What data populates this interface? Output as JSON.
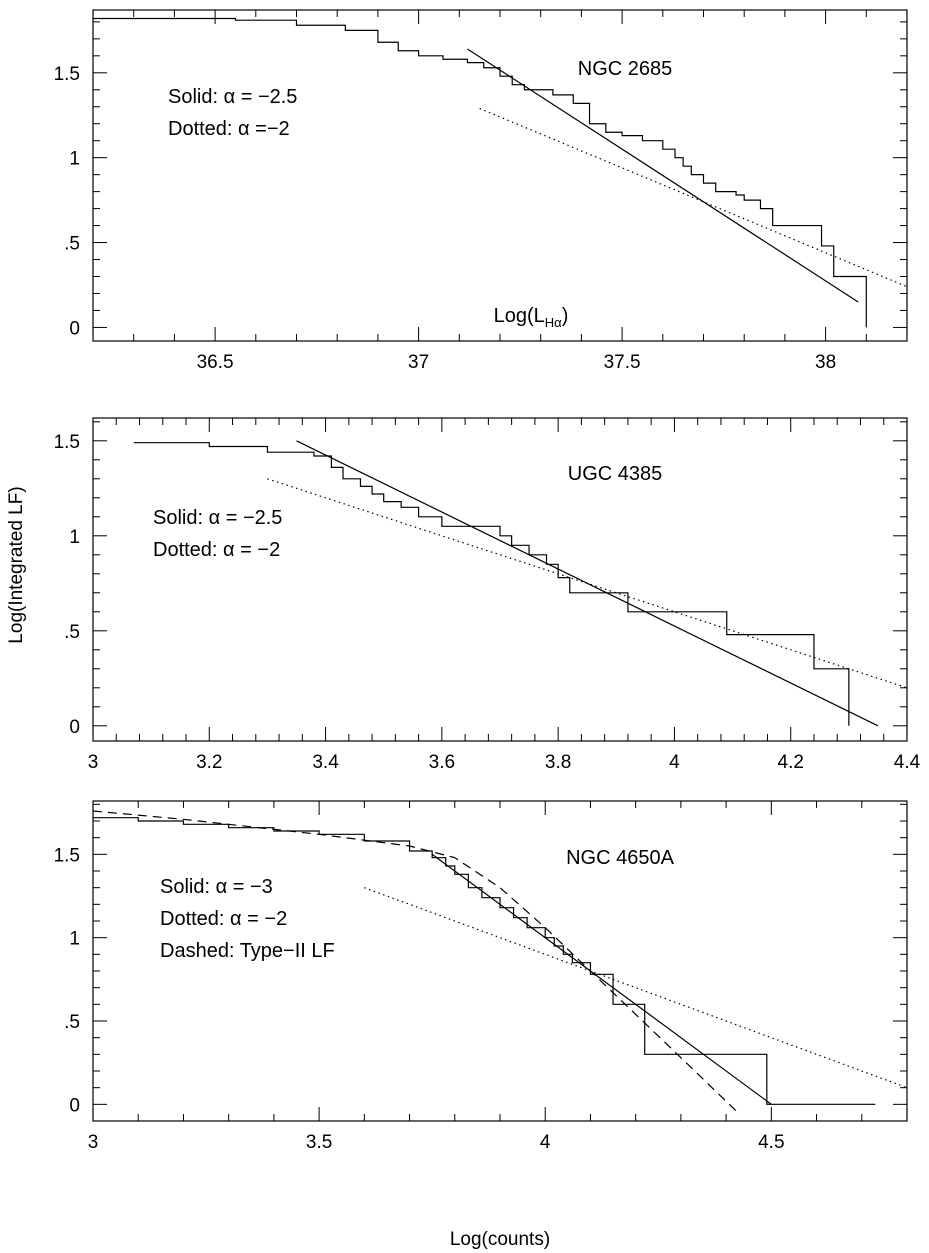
{
  "figure": {
    "ylabel": "Log(Integrated LF)",
    "xlabel_bottom": "Log(counts)"
  },
  "chart_data": [
    {
      "type": "line",
      "title": "NGC 2685",
      "xlabel_inside": "Log(L_Hα)",
      "xlim": [
        36.2,
        38.2
      ],
      "ylim": [
        -0.08,
        1.87
      ],
      "xticks": [
        36.5,
        37,
        37.5,
        38
      ],
      "xtick_labels": [
        "36.5",
        "37",
        "37.5",
        "38"
      ],
      "yticks": [
        0,
        0.5,
        1,
        1.5
      ],
      "ytick_labels": [
        "0",
        ".5",
        "1",
        "1.5"
      ],
      "legend": [
        {
          "style": "solid",
          "label": "Solid: α = −2.5"
        },
        {
          "style": "dotted",
          "label": "Dotted: α =−2"
        }
      ],
      "series": [
        {
          "kind": "step",
          "x": [
            36.2,
            36.55,
            36.7,
            36.82,
            36.9,
            36.95,
            37.0,
            37.06,
            37.12,
            37.16,
            37.2,
            37.23,
            37.26,
            37.33,
            37.38,
            37.42,
            37.46,
            37.5,
            37.55,
            37.6,
            37.63,
            37.65,
            37.67,
            37.7,
            37.73,
            37.78,
            37.8,
            37.84,
            37.87,
            37.95,
            37.99,
            38.02,
            38.04,
            38.1
          ],
          "y": [
            1.82,
            1.81,
            1.78,
            1.75,
            1.68,
            1.63,
            1.6,
            1.58,
            1.56,
            1.53,
            1.48,
            1.43,
            1.4,
            1.37,
            1.32,
            1.2,
            1.15,
            1.13,
            1.1,
            1.05,
            1.0,
            0.95,
            0.9,
            0.85,
            0.8,
            0.78,
            0.75,
            0.7,
            0.6,
            0.6,
            0.48,
            0.3,
            0.3,
            0.0
          ]
        },
        {
          "kind": "solid",
          "x": [
            37.12,
            38.08
          ],
          "y": [
            1.64,
            0.15
          ]
        },
        {
          "kind": "dotted",
          "x": [
            37.15,
            38.2
          ],
          "y": [
            1.29,
            0.24
          ]
        }
      ]
    },
    {
      "type": "line",
      "title": "UGC 4385",
      "xlim": [
        3.0,
        4.4
      ],
      "ylim": [
        -0.08,
        1.62
      ],
      "xticks": [
        3,
        3.2,
        3.4,
        3.6,
        3.8,
        4,
        4.2,
        4.4
      ],
      "xtick_labels": [
        "3",
        "3.2",
        "3.4",
        "3.6",
        "3.8",
        "4",
        "4.2",
        "4.4"
      ],
      "yticks": [
        0,
        0.5,
        1,
        1.5
      ],
      "ytick_labels": [
        "0",
        ".5",
        "1",
        "1.5"
      ],
      "legend": [
        {
          "style": "solid",
          "label": "Solid: α = −2.5"
        },
        {
          "style": "dotted",
          "label": "Dotted: α = −2"
        }
      ],
      "series": [
        {
          "kind": "step",
          "x": [
            3.07,
            3.2,
            3.3,
            3.38,
            3.41,
            3.43,
            3.46,
            3.48,
            3.5,
            3.53,
            3.56,
            3.6,
            3.64,
            3.7,
            3.72,
            3.75,
            3.78,
            3.8,
            3.82,
            3.92,
            4.09,
            4.24,
            4.3
          ],
          "y": [
            1.49,
            1.47,
            1.44,
            1.42,
            1.36,
            1.3,
            1.26,
            1.22,
            1.18,
            1.15,
            1.1,
            1.05,
            1.05,
            1.0,
            0.95,
            0.9,
            0.85,
            0.78,
            0.7,
            0.6,
            0.48,
            0.3,
            0.0
          ]
        },
        {
          "kind": "solid",
          "x": [
            3.35,
            4.35
          ],
          "y": [
            1.5,
            0.0
          ]
        },
        {
          "kind": "dotted",
          "x": [
            3.3,
            4.4
          ],
          "y": [
            1.3,
            0.2
          ]
        }
      ]
    },
    {
      "type": "line",
      "title": "NGC 4650A",
      "xlim": [
        3.0,
        4.8
      ],
      "ylim": [
        -0.1,
        1.82
      ],
      "xticks": [
        3,
        3.5,
        4,
        4.5
      ],
      "xtick_labels": [
        "3",
        "3.5",
        "4",
        "4.5"
      ],
      "yticks": [
        0,
        0.5,
        1,
        1.5
      ],
      "ytick_labels": [
        "0",
        ".5",
        "1",
        "1.5"
      ],
      "xlabel": "Log(counts)",
      "legend": [
        {
          "style": "solid",
          "label": "Solid: α = −3"
        },
        {
          "style": "dotted",
          "label": "Dotted: α = −2"
        },
        {
          "style": "dashed",
          "label": "Dashed: Type−II LF"
        }
      ],
      "series": [
        {
          "kind": "step",
          "x": [
            3.0,
            3.1,
            3.2,
            3.3,
            3.4,
            3.5,
            3.6,
            3.7,
            3.75,
            3.78,
            3.8,
            3.83,
            3.86,
            3.9,
            3.93,
            3.96,
            4.0,
            4.02,
            4.04,
            4.06,
            4.1,
            4.15,
            4.22,
            4.49,
            4.73
          ],
          "y": [
            1.72,
            1.7,
            1.68,
            1.66,
            1.64,
            1.62,
            1.58,
            1.52,
            1.48,
            1.43,
            1.38,
            1.3,
            1.24,
            1.18,
            1.12,
            1.06,
            1.0,
            0.95,
            0.9,
            0.85,
            0.78,
            0.6,
            0.3,
            0.0,
            0.0
          ]
        },
        {
          "kind": "solid",
          "x": [
            3.75,
            4.5
          ],
          "y": [
            1.5,
            0.0
          ]
        },
        {
          "kind": "dotted",
          "x": [
            3.6,
            4.8
          ],
          "y": [
            1.3,
            0.1
          ]
        },
        {
          "kind": "dashed",
          "x": [
            3.0,
            3.2,
            3.5,
            3.7,
            3.8,
            3.9,
            4.0,
            4.1,
            4.2,
            4.3,
            4.43
          ],
          "y": [
            1.76,
            1.71,
            1.62,
            1.55,
            1.48,
            1.3,
            1.06,
            0.8,
            0.54,
            0.28,
            -0.06
          ]
        }
      ]
    }
  ]
}
